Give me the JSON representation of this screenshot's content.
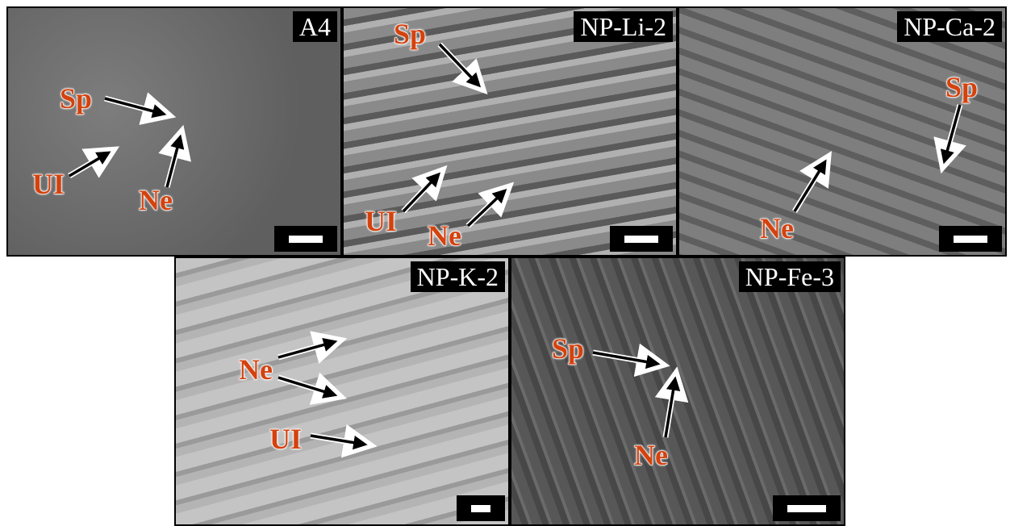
{
  "panels": [
    {
      "label": "A4",
      "annotations": [
        "Sp",
        "UI",
        "Ne"
      ]
    },
    {
      "label": "NP-Li-2",
      "annotations": [
        "Sp",
        "UI",
        "Ne"
      ]
    },
    {
      "label": "NP-Ca-2",
      "annotations": [
        "Sp",
        "Ne"
      ]
    },
    {
      "label": "NP-K-2",
      "annotations": [
        "Ne",
        "UI"
      ]
    },
    {
      "label": "NP-Fe-3",
      "annotations": [
        "Sp",
        "Ne"
      ]
    }
  ]
}
